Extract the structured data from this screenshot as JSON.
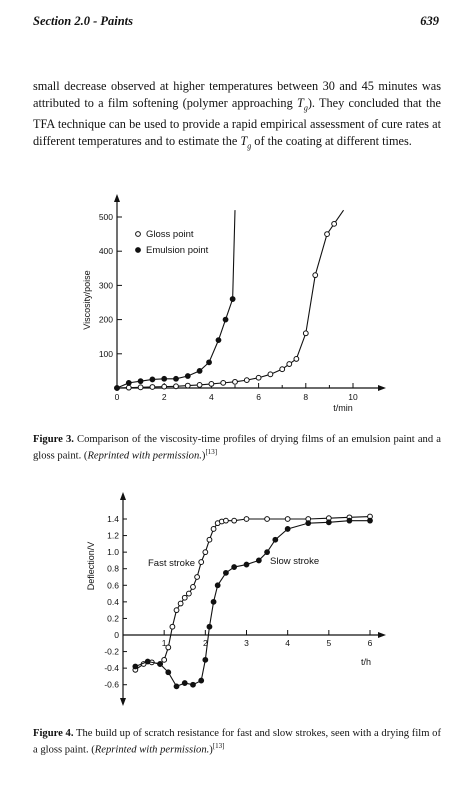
{
  "header": {
    "section": "Section 2.0 - Paints",
    "page": "639"
  },
  "paragraph": {
    "part1": "small decrease observed at higher temperatures between 30 and 45 minutes was attributed to a film softening (polymer approaching ",
    "tg1_t": "T",
    "tg1_g": "g",
    "part2": "). They concluded that the TFA technique can be used to provide a rapid empirical assessment of cure rates at different temperatures and to estimate the ",
    "tg2_t": "T",
    "tg2_g": "g",
    "part3": " of the coating at different times."
  },
  "figure3": {
    "label": "Figure 3.",
    "text": " Comparison of the viscosity-time profiles of drying films of an emulsion paint and a gloss paint. (",
    "reprint": "Reprinted with permission.",
    "close": ")",
    "ref": "[13]"
  },
  "figure4": {
    "label": "Figure 4.",
    "text": " The build up of scratch resistance for fast and slow strokes, seen with a drying film of a gloss paint. (",
    "reprint": "Reprinted with permission.",
    "close": ")",
    "ref": "[13]"
  },
  "chart_data": [
    {
      "type": "scatter",
      "title": "",
      "xlabel": "t/min",
      "ylabel": "Viscosity/poise",
      "xlim": [
        0,
        10.5
      ],
      "ylim": [
        0,
        520
      ],
      "xticks": [
        "0",
        "2",
        "4",
        "6",
        "8",
        "10"
      ],
      "yticks": [
        "0",
        "100",
        "200",
        "300",
        "400",
        "500"
      ],
      "legend_position": "top-left",
      "series": [
        {
          "name": "Gloss point",
          "marker": "open-circle",
          "x": [
            0,
            0.5,
            1.0,
            1.5,
            2.0,
            2.5,
            3.0,
            3.5,
            4.0,
            4.5,
            5.0,
            5.5,
            6.0,
            6.5,
            7.0,
            7.3,
            7.6,
            8.0,
            8.4,
            8.9,
            9.2,
            9.6
          ],
          "y": [
            0,
            1,
            2,
            3,
            4,
            5,
            7,
            9,
            12,
            15,
            18,
            23,
            30,
            40,
            55,
            70,
            85,
            160,
            330,
            450,
            480,
            520
          ]
        },
        {
          "name": "Emulsion point",
          "marker": "filled-circle",
          "x": [
            0,
            0.5,
            1.0,
            1.5,
            2.0,
            2.5,
            3.0,
            3.5,
            3.9,
            4.3,
            4.6,
            4.9,
            5.0
          ],
          "y": [
            0,
            15,
            20,
            25,
            27,
            27,
            35,
            50,
            75,
            140,
            200,
            260,
            520
          ]
        }
      ]
    },
    {
      "type": "line",
      "title": "",
      "xlabel": "t/h",
      "ylabel": "Deflection/V",
      "xlim": [
        0,
        6.2
      ],
      "ylim": [
        -0.7,
        1.45
      ],
      "xticks": [
        "1",
        "2",
        "3",
        "4",
        "5",
        "6"
      ],
      "yticks": [
        "-0.6",
        "-0.4",
        "-0.2",
        "0",
        "0.2",
        "0.4",
        "0.6",
        "0.8",
        "1.0",
        "1.2",
        "1.4"
      ],
      "series": [
        {
          "name": "Fast stroke",
          "marker": "open-circle",
          "x": [
            0.3,
            0.5,
            0.7,
            0.9,
            1.0,
            1.1,
            1.2,
            1.3,
            1.4,
            1.5,
            1.6,
            1.7,
            1.8,
            1.9,
            2.0,
            2.1,
            2.2,
            2.3,
            2.4,
            2.5,
            2.7,
            3.0,
            3.5,
            4.0,
            4.5,
            5.0,
            5.5,
            6.0
          ],
          "y": [
            -0.42,
            -0.35,
            -0.33,
            -0.35,
            -0.3,
            -0.15,
            0.1,
            0.3,
            0.38,
            0.45,
            0.5,
            0.58,
            0.7,
            0.88,
            1.0,
            1.15,
            1.28,
            1.35,
            1.37,
            1.38,
            1.38,
            1.4,
            1.4,
            1.4,
            1.4,
            1.41,
            1.42,
            1.43
          ]
        },
        {
          "name": "Slow stroke",
          "marker": "filled-circle",
          "x": [
            0.3,
            0.6,
            0.9,
            1.1,
            1.3,
            1.5,
            1.7,
            1.9,
            2.0,
            2.1,
            2.2,
            2.3,
            2.5,
            2.7,
            3.0,
            3.3,
            3.5,
            3.7,
            4.0,
            4.5,
            5.0,
            5.5,
            6.0
          ],
          "y": [
            -0.38,
            -0.32,
            -0.35,
            -0.45,
            -0.62,
            -0.58,
            -0.6,
            -0.55,
            -0.3,
            0.1,
            0.4,
            0.6,
            0.75,
            0.82,
            0.85,
            0.9,
            1.0,
            1.15,
            1.28,
            1.35,
            1.36,
            1.38,
            1.38
          ]
        }
      ]
    }
  ]
}
